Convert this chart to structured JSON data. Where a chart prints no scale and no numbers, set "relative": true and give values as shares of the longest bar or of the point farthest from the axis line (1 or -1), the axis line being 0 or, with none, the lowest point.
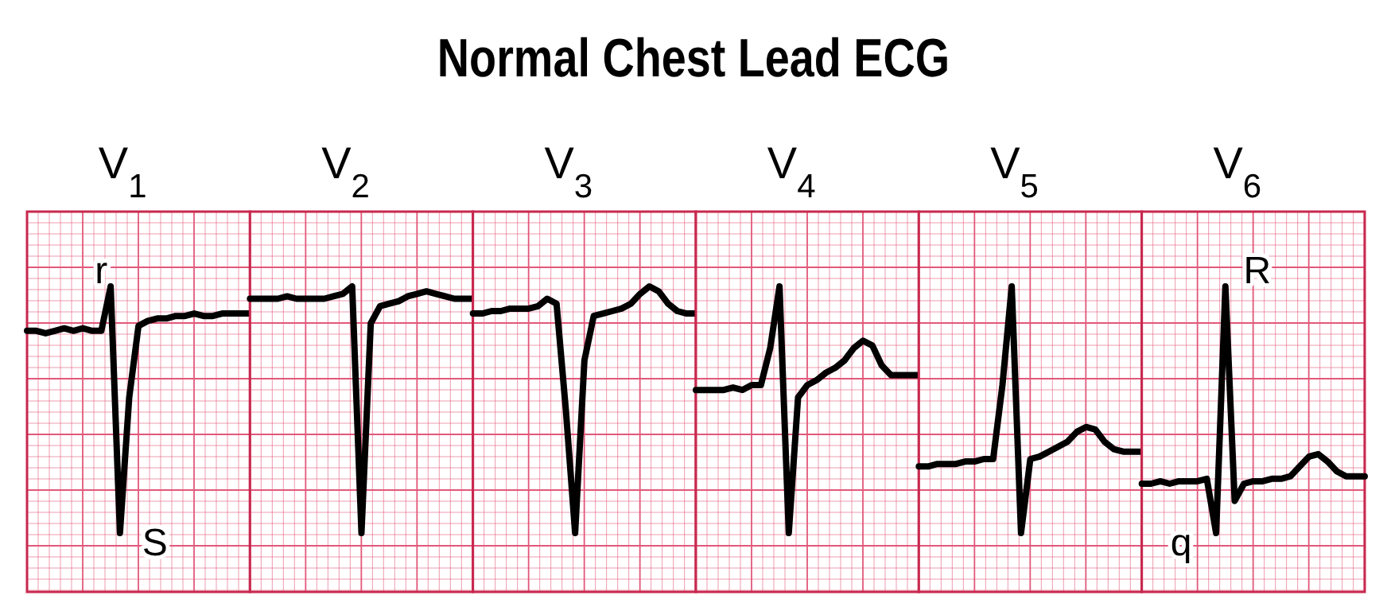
{
  "chart_data": [
    {
      "type": "other",
      "title": "Normal Chest Lead ECG"
    },
    {
      "type": "line",
      "title": "V$_{1}$",
      "relative": true,
      "grid": true,
      "color": "#000000",
      "categories": [
        null,
        null,
        null,
        null,
        null,
        null,
        null,
        null,
        null,
        null,
        null,
        null,
        null,
        null,
        null,
        null,
        null,
        null,
        null,
        null,
        null,
        null,
        null,
        null,
        null
      ],
      "values": [
        0.82,
        0.82,
        0.81,
        0.82,
        0.83,
        0.82,
        0.83,
        0.82,
        0.82,
        1.0,
        0.0,
        0.55,
        0.84,
        0.86,
        0.87,
        0.87,
        0.88,
        0.88,
        0.89,
        0.88,
        0.88,
        0.89,
        0.89,
        0.89,
        0.89
      ],
      "annotations": [
        "r",
        "S"
      ]
    },
    {
      "type": "line",
      "title": "V$_{2}$",
      "relative": true,
      "grid": true,
      "color": "#000000",
      "categories": [
        null,
        null,
        null,
        null,
        null,
        null,
        null,
        null,
        null,
        null,
        null,
        null,
        null,
        null,
        null,
        null,
        null,
        null,
        null,
        null,
        null,
        null,
        null,
        null,
        null
      ],
      "values": [
        0.95,
        0.95,
        0.95,
        0.95,
        0.96,
        0.95,
        0.95,
        0.95,
        0.95,
        0.96,
        0.97,
        1.0,
        0.0,
        0.85,
        0.92,
        0.93,
        0.94,
        0.96,
        0.97,
        0.98,
        0.97,
        0.96,
        0.95,
        0.95,
        0.95
      ]
    },
    {
      "type": "line",
      "title": "V$_{3}$",
      "relative": true,
      "grid": true,
      "color": "#000000",
      "categories": [
        null,
        null,
        null,
        null,
        null,
        null,
        null,
        null,
        null,
        null,
        null,
        null,
        null,
        null,
        null,
        null,
        null,
        null,
        null,
        null,
        null,
        null,
        null,
        null,
        null
      ],
      "values": [
        0.89,
        0.89,
        0.9,
        0.9,
        0.91,
        0.91,
        0.91,
        0.92,
        0.95,
        0.93,
        0.5,
        0.0,
        0.7,
        0.88,
        0.89,
        0.9,
        0.91,
        0.93,
        0.97,
        1.0,
        0.98,
        0.93,
        0.9,
        0.89,
        0.89
      ]
    },
    {
      "type": "line",
      "title": "V$_{4}$",
      "relative": true,
      "grid": true,
      "color": "#000000",
      "categories": [
        null,
        null,
        null,
        null,
        null,
        null,
        null,
        null,
        null,
        null,
        null,
        null,
        null,
        null,
        null,
        null,
        null,
        null,
        null,
        null,
        null,
        null,
        null,
        null,
        null
      ],
      "values": [
        0.58,
        0.58,
        0.58,
        0.58,
        0.59,
        0.58,
        0.6,
        0.6,
        0.75,
        1.0,
        0.0,
        0.55,
        0.6,
        0.62,
        0.65,
        0.67,
        0.7,
        0.75,
        0.78,
        0.76,
        0.68,
        0.64,
        0.64,
        0.64,
        0.64
      ]
    },
    {
      "type": "line",
      "title": "V$_{5}$",
      "relative": true,
      "grid": true,
      "color": "#000000",
      "categories": [
        null,
        null,
        null,
        null,
        null,
        null,
        null,
        null,
        null,
        null,
        null,
        null,
        null,
        null,
        null,
        null,
        null,
        null,
        null,
        null,
        null,
        null,
        null,
        null,
        null
      ],
      "values": [
        0.27,
        0.27,
        0.28,
        0.28,
        0.28,
        0.29,
        0.29,
        0.3,
        0.3,
        0.6,
        1.0,
        0.0,
        0.3,
        0.31,
        0.33,
        0.35,
        0.37,
        0.41,
        0.43,
        0.42,
        0.37,
        0.34,
        0.33,
        0.33,
        0.33
      ]
    },
    {
      "type": "line",
      "title": "V$_{6}$",
      "relative": true,
      "grid": true,
      "color": "#000000",
      "categories": [
        null,
        null,
        null,
        null,
        null,
        null,
        null,
        null,
        null,
        null,
        null,
        null,
        null,
        null,
        null,
        null,
        null,
        null,
        null,
        null,
        null,
        null,
        null,
        null,
        null
      ],
      "values": [
        0.2,
        0.2,
        0.21,
        0.2,
        0.21,
        0.21,
        0.21,
        0.22,
        0.0,
        1.0,
        0.13,
        0.2,
        0.21,
        0.21,
        0.22,
        0.22,
        0.23,
        0.27,
        0.31,
        0.32,
        0.29,
        0.25,
        0.23,
        0.23,
        0.23
      ],
      "annotations": [
        "R",
        "q"
      ]
    }
  ]
}
